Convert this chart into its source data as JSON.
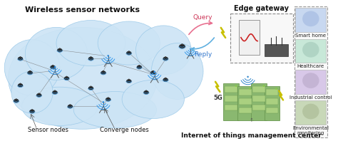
{
  "background_color": "#ffffff",
  "wsn_label": "Wireless sensor networks",
  "sensor_nodes_label": "Sensor nodes",
  "converge_nodes_label": "Converge nodes",
  "iot_label": "Internet of things management center",
  "edge_label": "Edge gateway",
  "query_label": "Query",
  "reply_label": "Reply",
  "applications": [
    "Smart home",
    "Healthcare",
    "Industrial control",
    "Environmental\nmonitoring"
  ],
  "cloud_color": "#cce4f5",
  "cloud_edge_color": "#99c8e8",
  "server_color": "#8ab870",
  "server_dark": "#6a9850",
  "server_light": "#aad080",
  "query_arrow_color": "#e87090",
  "reply_arrow_color": "#60b0e0",
  "lightning_color": "#c8c000",
  "node_color": "#333333",
  "tower_color": "#555555",
  "wire_color": "#888888",
  "app_box_edge": "#888888",
  "font_title": 8,
  "font_label": 6,
  "font_app": 6,
  "font_edge": 7,
  "font_iot": 6.5
}
